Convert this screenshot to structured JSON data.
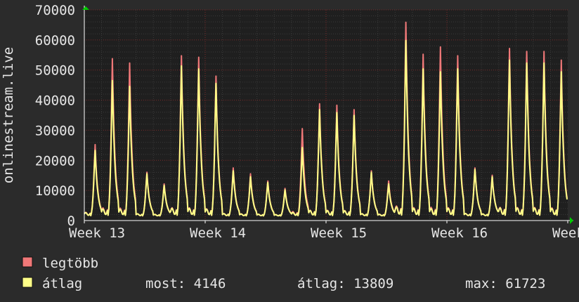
{
  "chart_data": {
    "type": "line",
    "title": "",
    "ylabel": "onlinestream.live",
    "xlabel": "",
    "ylim": [
      0,
      70000
    ],
    "y_ticks": [
      "0",
      "10000",
      "20000",
      "30000",
      "40000",
      "50000",
      "60000",
      "70000"
    ],
    "y_tick_values": [
      0,
      10000,
      20000,
      30000,
      40000,
      50000,
      60000,
      70000
    ],
    "x_ticks": [
      "Week 13",
      "Week 14",
      "Week 15",
      "Week 16",
      "Week 17"
    ],
    "grid": true,
    "legend_placement": "bottom-left",
    "colors": {
      "background": "#2b2b2b",
      "plot_bg": "#1f1f1f",
      "grid_major": "#7a2a2a",
      "grid_minor": "#3a3a3a",
      "axis": "#ffffff",
      "max_series": "#f07878",
      "avg_series": "#ffff88",
      "arrow": "#00cc00"
    },
    "days": [
      {
        "peak_max": 26000,
        "peak_avg": 24000
      },
      {
        "peak_max": 55500,
        "peak_avg": 48000
      },
      {
        "peak_max": 54000,
        "peak_avg": 46000
      },
      {
        "peak_max": 16500,
        "peak_avg": 16000
      },
      {
        "peak_max": 12500,
        "peak_avg": 12000
      },
      {
        "peak_max": 56500,
        "peak_avg": 53000
      },
      {
        "peak_max": 56000,
        "peak_avg": 52000
      },
      {
        "peak_max": 49500,
        "peak_avg": 47000
      },
      {
        "peak_max": 18000,
        "peak_avg": 17000
      },
      {
        "peak_max": 16000,
        "peak_avg": 15000
      },
      {
        "peak_max": 13500,
        "peak_avg": 13000
      },
      {
        "peak_max": 11000,
        "peak_avg": 10500
      },
      {
        "peak_max": 31500,
        "peak_avg": 25000
      },
      {
        "peak_max": 40000,
        "peak_avg": 38000
      },
      {
        "peak_max": 39500,
        "peak_avg": 37000
      },
      {
        "peak_max": 38000,
        "peak_avg": 36000
      },
      {
        "peak_max": 17000,
        "peak_avg": 16500
      },
      {
        "peak_max": 13500,
        "peak_avg": 12500
      },
      {
        "peak_max": 68000,
        "peak_avg": 61700
      },
      {
        "peak_max": 57000,
        "peak_avg": 52000
      },
      {
        "peak_max": 59500,
        "peak_avg": 51000
      },
      {
        "peak_max": 56500,
        "peak_avg": 52000
      },
      {
        "peak_max": 18000,
        "peak_avg": 17500
      },
      {
        "peak_max": 15500,
        "peak_avg": 15000
      },
      {
        "peak_max": 59000,
        "peak_avg": 55000
      },
      {
        "peak_max": 58000,
        "peak_avg": 54000
      },
      {
        "peak_max": 58000,
        "peak_avg": 54000
      },
      {
        "peak_max": 55000,
        "peak_avg": 51000
      }
    ],
    "series": [
      {
        "name": "legtöbb",
        "color": "#f07878"
      },
      {
        "name": "átlag",
        "color": "#ffff88"
      }
    ]
  },
  "legend": {
    "max_label": "legtöbb",
    "avg_label": "átlag",
    "current": "most: 4146",
    "average": "átlag: 13809",
    "maximum": "max: 61723"
  }
}
